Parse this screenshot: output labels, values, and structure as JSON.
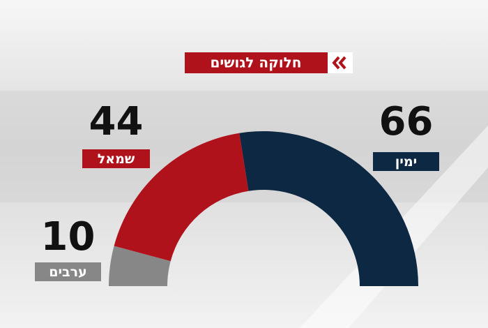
{
  "chart_data": {
    "type": "donut",
    "title": "חלוקה לגושים",
    "categories": [
      "ימין",
      "שמאל",
      "ערבים"
    ],
    "values": [
      66,
      44,
      10
    ],
    "colors": [
      "#0d2843",
      "#b0121c",
      "#878787"
    ]
  }
}
